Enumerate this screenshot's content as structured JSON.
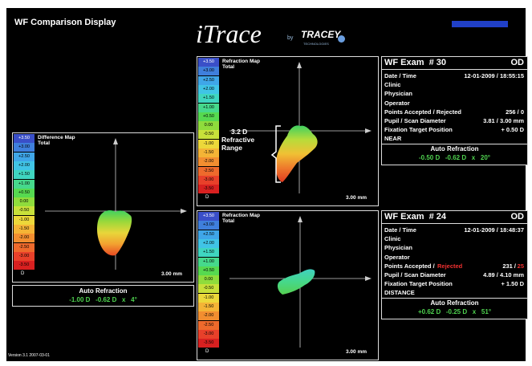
{
  "header": {
    "title": "WF Comparison Display",
    "logo": "iTrace",
    "logo_by": "by",
    "logo_brand": "TRACEY",
    "logo_sub": "TECHNOLOGIES"
  },
  "scale": {
    "labels": [
      "+3.50",
      "+3.00",
      "+2.50",
      "+2.00",
      "+1.50",
      "+1.00",
      "+0.50",
      "0.00",
      "-0.50",
      "-1.00",
      "-1.50",
      "-2.00",
      "-2.50",
      "-3.00",
      "-3.50"
    ],
    "unit": "D",
    "colors": [
      "#3a4fc8",
      "#3f7fdc",
      "#3fa6e8",
      "#40c4e6",
      "#3fd6c0",
      "#46d98c",
      "#56d950",
      "#8fdc3c",
      "#c8e03a",
      "#ecd83a",
      "#f4b436",
      "#f28e30",
      "#ee6a2c",
      "#e8402a",
      "#d82020"
    ]
  },
  "difference_map": {
    "title": "Difference Map",
    "subtitle": "Total",
    "size": "3.00 mm",
    "auto_refraction": {
      "title": "Auto Refraction",
      "values": "-1.00 D   -0.62 D   x   4°"
    }
  },
  "map_top": {
    "title": "Refraction Map",
    "subtitle": "Total",
    "size": "3.00 mm",
    "annotation": [
      "3.2 D",
      "Refractive",
      "Range"
    ]
  },
  "map_bottom": {
    "title": "Refraction Map",
    "subtitle": "Total",
    "size": "3.00 mm"
  },
  "exam_top": {
    "title": "WF Exam  # 30",
    "eye": "OD",
    "rows": [
      {
        "label": "Date / Time",
        "value": "12-01-2009 / 18:55:15"
      },
      {
        "label": "Clinic"
      },
      {
        "label": "Physician"
      },
      {
        "label": "Operator"
      },
      {
        "label": "Points Accepted / Rejected",
        "value": "256 / 0"
      },
      {
        "label": "Pupil / Scan Diameter",
        "value": "3.81 / 3.00 mm"
      },
      {
        "label": "Fixation Target Position",
        "value": "+ 0.50 D"
      },
      {
        "label": "NEAR"
      }
    ],
    "auto_refraction": {
      "title": "Auto Refraction",
      "values": "-0.50 D   -0.62 D   x   20°"
    }
  },
  "exam_bottom": {
    "title": "WF Exam  # 24",
    "eye": "OD",
    "rows": [
      {
        "label": "Date / Time",
        "value": "12-01-2009 / 18:48:37"
      },
      {
        "label": "Clinic"
      },
      {
        "label": "Physician"
      },
      {
        "label": "Operator"
      },
      {
        "label": "Points Accepted /",
        "label_alert": "Rejected",
        "value": "231 /",
        "value_alert": "25"
      },
      {
        "label": "Pupil / Scan Diameter",
        "value": "4.89 / 4.10 mm"
      },
      {
        "label": "Fixation Target Position",
        "value": "+ 1.50 D"
      },
      {
        "label": "DISTANCE"
      }
    ],
    "auto_refraction": {
      "title": "Auto Refraction",
      "values": "+0.62 D   -0.25 D   x   51°"
    }
  },
  "version": "Version 3.1 2007-03-01"
}
